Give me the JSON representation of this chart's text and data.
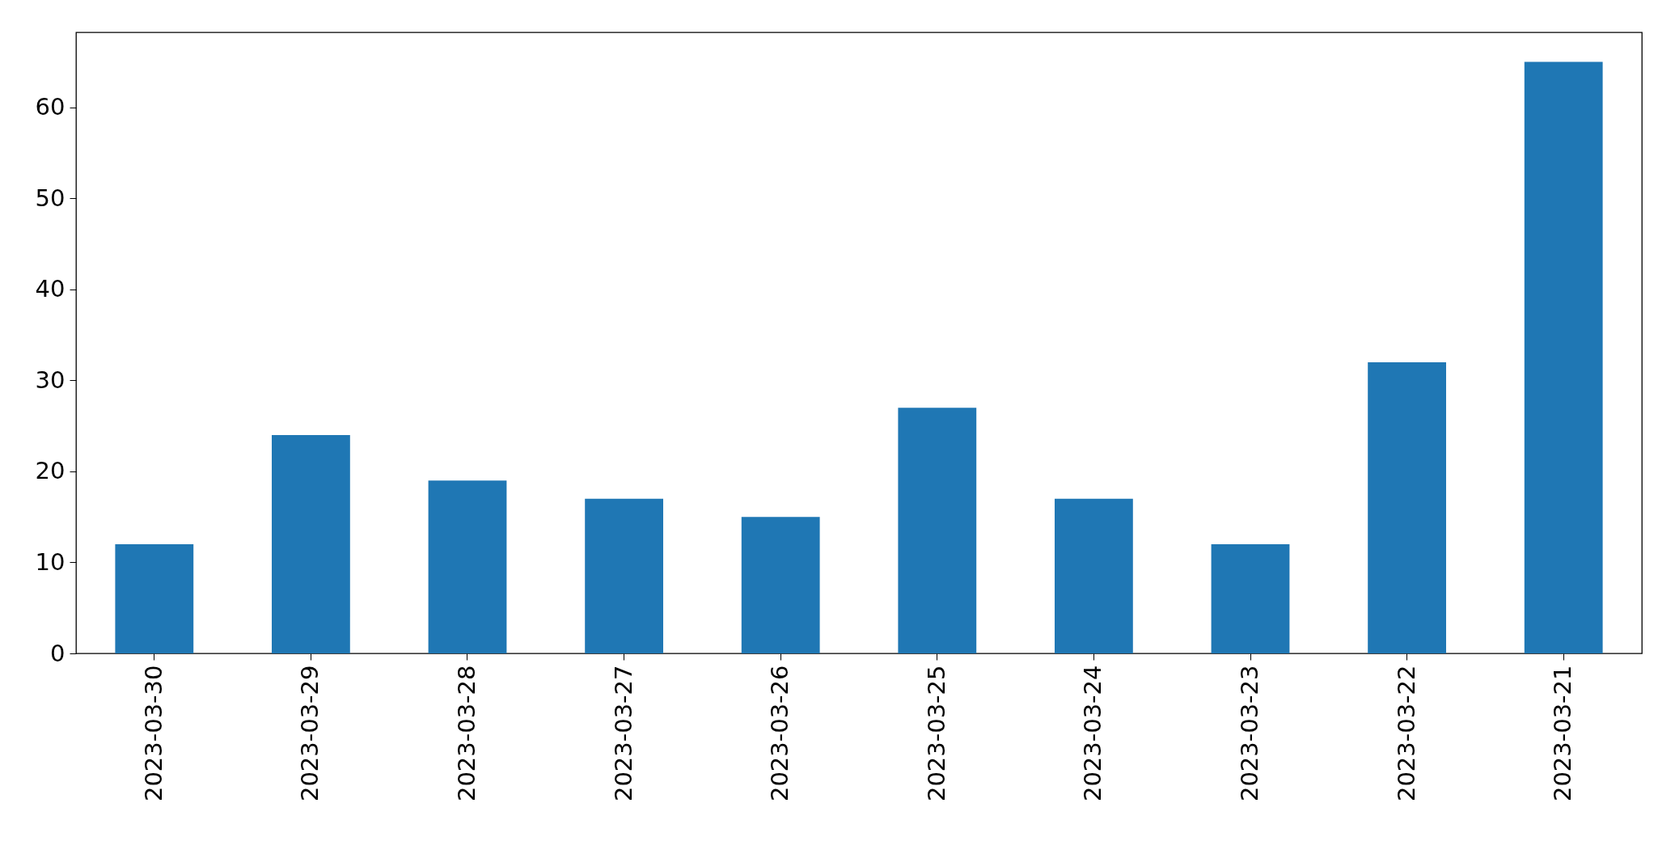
{
  "chart_data": {
    "type": "bar",
    "categories": [
      "2023-03-30",
      "2023-03-29",
      "2023-03-28",
      "2023-03-27",
      "2023-03-26",
      "2023-03-25",
      "2023-03-24",
      "2023-03-23",
      "2023-03-22",
      "2023-03-21"
    ],
    "values": [
      12,
      24,
      19,
      17,
      15,
      27,
      17,
      12,
      32,
      65
    ],
    "color": "#1f77b4",
    "ylim": [
      0,
      68.25
    ],
    "yticks": [
      0,
      10,
      20,
      30,
      40,
      50,
      60
    ],
    "grid": false
  }
}
